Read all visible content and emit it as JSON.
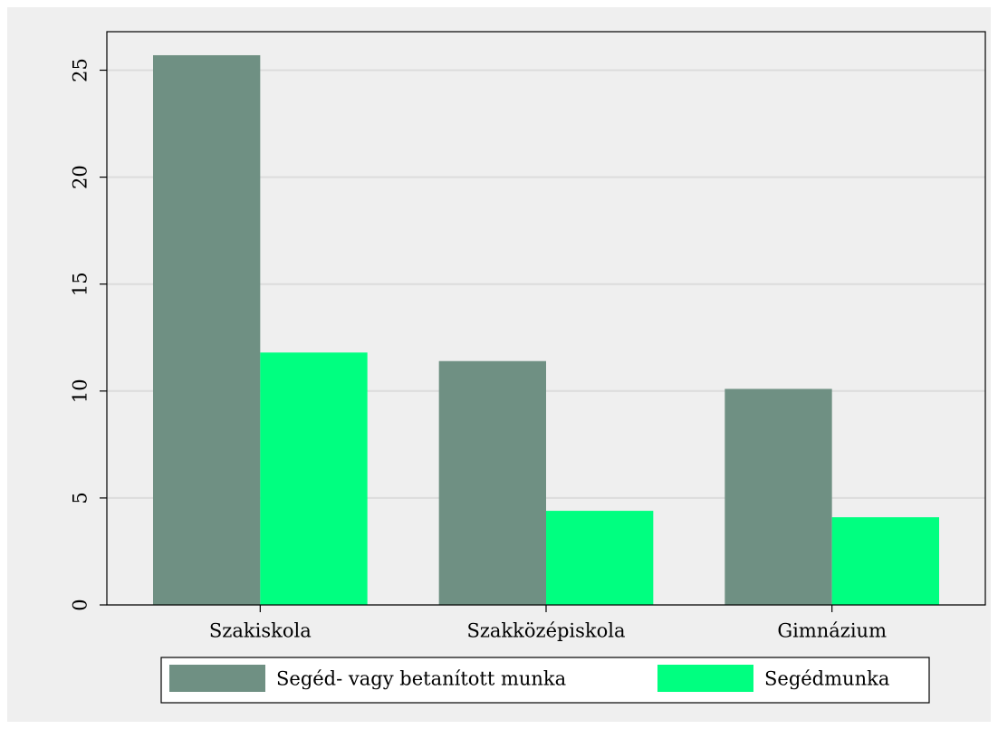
{
  "chart_data": {
    "type": "bar",
    "categories": [
      "Szakiskola",
      "Szakközépiskola",
      "Gimnázium"
    ],
    "series": [
      {
        "name": "Segéd- vagy betanított munka",
        "color": "#6f9083",
        "values": [
          25.7,
          11.4,
          10.1
        ]
      },
      {
        "name": "Segédmunka",
        "color": "#00ff80",
        "values": [
          11.8,
          4.4,
          4.1
        ]
      }
    ],
    "ylim": [
      0,
      26.8
    ],
    "yticks": [
      0,
      5,
      10,
      15,
      20,
      25
    ],
    "grid": true,
    "legend": "bottom"
  }
}
